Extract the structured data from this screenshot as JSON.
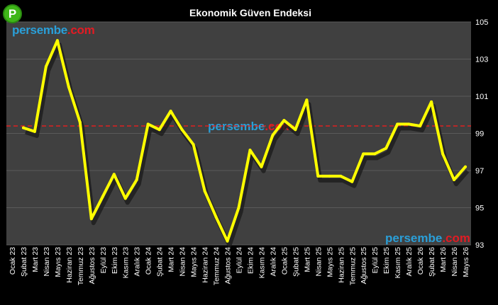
{
  "brand": {
    "logo_letter": "P",
    "name_part": "persembe",
    "tld_part": ".com"
  },
  "colors": {
    "background": "#000000",
    "plot": "#404040",
    "grid": "#5a5a5a",
    "line": "#ffff00",
    "reference": "#e02020"
  },
  "chart_data": {
    "type": "line",
    "title": "Ekonomik Güven Endeksi",
    "xlabel": "",
    "ylabel": "",
    "ylim": [
      93,
      105
    ],
    "yticks": [
      93,
      95,
      97,
      99,
      101,
      103,
      105
    ],
    "grid": true,
    "reference_line": 99.4,
    "categories": [
      "Ocak 23",
      "Şubat 23",
      "Mart 23",
      "Nisan 23",
      "Mayıs 23",
      "Haziran 23",
      "Temmuz 23",
      "Ağustos 23",
      "Eylül 23",
      "Ekim 23",
      "Kasım 23",
      "Aralık 23",
      "Ocak 24",
      "Şubat 24",
      "Mart 24",
      "Nisan 24",
      "Mayıs 24",
      "Haziran 24",
      "Temmuz 24",
      "Ağustos 24",
      "Eylül 24",
      "Ekim 24",
      "Kasım 24",
      "Aralık 24",
      "Ocak 25",
      "Şubat 25",
      "Mart 25",
      "Nisan 25",
      "Mayıs 25",
      "Haziran 25",
      "Temmuz 25",
      "Ağustos 25",
      "Eylül 25",
      "Ekim 25",
      "Kasım 25",
      "Aralık 25",
      "Ocak 26",
      "Şubat 26",
      "Mart 26",
      "Nisan 26",
      "Mayıs 26"
    ],
    "series": [
      {
        "values": [
          null,
          99.3,
          99.1,
          102.6,
          104.0,
          101.5,
          99.6,
          94.4,
          95.6,
          96.8,
          95.5,
          96.5,
          99.5,
          99.2,
          100.2,
          99.2,
          98.4,
          95.9,
          94.5,
          93.2,
          95.0,
          98.1,
          97.2,
          98.9,
          99.7,
          99.2,
          100.8,
          96.7,
          96.7,
          96.7,
          96.4,
          97.9,
          97.9,
          98.2,
          99.5,
          99.5,
          99.4,
          100.7,
          97.9,
          96.5,
          97.2
        ]
      }
    ]
  }
}
